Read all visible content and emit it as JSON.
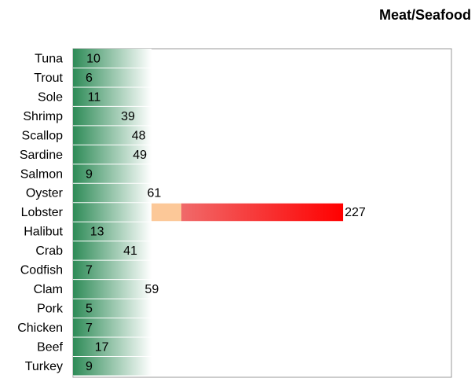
{
  "chart_data": {
    "type": "hbar",
    "title": "Meat/Seafood",
    "categories": [
      "Tuna",
      "Trout",
      "Sole",
      "Shrimp",
      "Scallop",
      "Sardine",
      "Salmon",
      "Oyster",
      "Lobster",
      "Halibut",
      "Crab",
      "Codfish",
      "Clam",
      "Pork",
      "Chicken",
      "Beef",
      "Turkey"
    ],
    "values": [
      10,
      6,
      11,
      39,
      48,
      49,
      9,
      61,
      227,
      13,
      41,
      7,
      59,
      5,
      7,
      17,
      9
    ],
    "color": "#2e8b57",
    "xlim": [
      0,
      318
    ]
  }
}
